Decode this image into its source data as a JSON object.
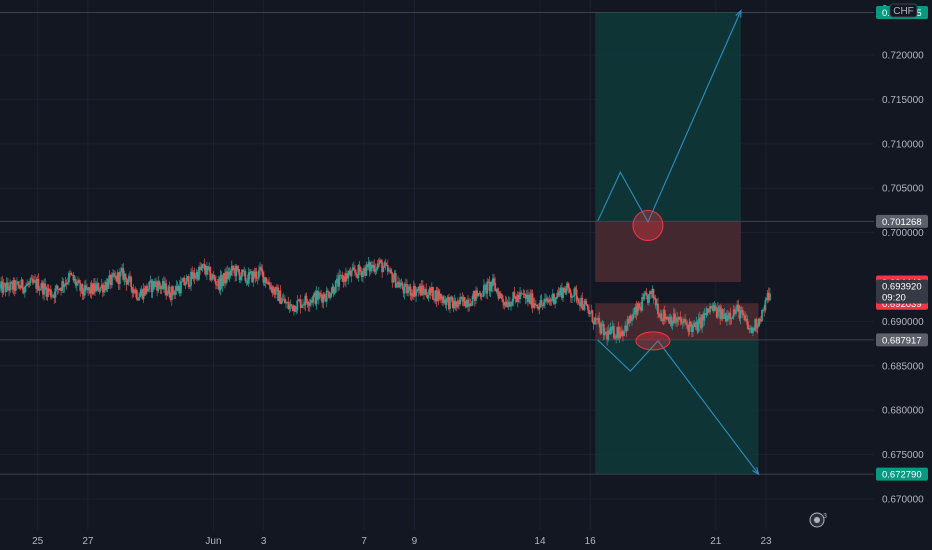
{
  "chart_data": {
    "type": "candlestick",
    "currency_label": "CHF",
    "y_axis": {
      "min": 0.6665,
      "max": 0.7262,
      "ticks": [
        "0.720000",
        "0.715000",
        "0.710000",
        "0.705000",
        "0.700000",
        "0.690000",
        "0.685000",
        "0.680000",
        "0.675000",
        "0.670000"
      ],
      "tick_values": [
        0.72,
        0.715,
        0.71,
        0.705,
        0.7,
        0.69,
        0.685,
        0.68,
        0.675,
        0.67
      ],
      "top_partial_label": "0."
    },
    "x_axis": {
      "labels": [
        "25",
        "27",
        "Jun",
        "3",
        "7",
        "9",
        "14",
        "16",
        "21",
        "23"
      ],
      "label_positions": [
        0.0,
        2.0,
        7.0,
        9.0,
        13.0,
        15.0,
        20.0,
        22.0,
        27.0,
        29.0
      ],
      "range": [
        -1.5,
        33.3
      ]
    },
    "price_tags": [
      {
        "label": "0.724795",
        "value": 0.724795,
        "color": "#089981"
      },
      {
        "label": "0.701268",
        "value": 0.701268,
        "color": "#5d606b"
      },
      {
        "label": "0.694442",
        "value": 0.694442,
        "color": "#f23645"
      },
      {
        "label": "0.692039",
        "value": 0.692039,
        "color": "#f23645"
      },
      {
        "label": "0.687917",
        "value": 0.687917,
        "color": "#5d606b"
      },
      {
        "label": "0.672790",
        "value": 0.67279,
        "color": "#089981"
      }
    ],
    "current_price_tag": {
      "price": "0.693920",
      "countdown": "09:20",
      "value": 0.69392,
      "color": "#363a45"
    },
    "horizontal_levels": [
      0.724795,
      0.701268,
      0.687917,
      0.67279
    ],
    "long_position": {
      "x_start": 22.2,
      "x_end": 28.0,
      "entry": 0.701268,
      "target": 0.724795,
      "stop": 0.694442
    },
    "short_position": {
      "x_start": 22.2,
      "x_end": 28.7,
      "entry": 0.687917,
      "target": 0.67279,
      "stop": 0.692039
    },
    "arrows": [
      {
        "points": [
          [
            22.3,
            0.7013
          ],
          [
            23.2,
            0.7068
          ],
          [
            24.3,
            0.7012
          ],
          [
            28.0,
            0.725
          ]
        ]
      },
      {
        "points": [
          [
            22.3,
            0.6879
          ],
          [
            23.6,
            0.6844
          ],
          [
            24.7,
            0.6878
          ],
          [
            28.7,
            0.6728
          ]
        ]
      }
    ],
    "annotations": [
      {
        "shape": "circle",
        "x": 24.3,
        "y": 0.7008
      },
      {
        "shape": "ellipse",
        "x": 24.5,
        "y": 0.6878
      }
    ],
    "price_anchors": [
      [
        -1.5,
        0.6937
      ],
      [
        0,
        0.6942
      ],
      [
        0.6,
        0.6931
      ],
      [
        1.3,
        0.6951
      ],
      [
        1.8,
        0.6932
      ],
      [
        2.6,
        0.694
      ],
      [
        3.4,
        0.6953
      ],
      [
        4.0,
        0.693
      ],
      [
        4.7,
        0.6943
      ],
      [
        5.3,
        0.6932
      ],
      [
        6.1,
        0.6948
      ],
      [
        6.6,
        0.696
      ],
      [
        7.2,
        0.6942
      ],
      [
        7.8,
        0.6958
      ],
      [
        8.3,
        0.6948
      ],
      [
        8.9,
        0.6955
      ],
      [
        9.4,
        0.6935
      ],
      [
        10.0,
        0.6916
      ],
      [
        10.8,
        0.6925
      ],
      [
        11.5,
        0.693
      ],
      [
        12.2,
        0.695
      ],
      [
        13.0,
        0.6958
      ],
      [
        13.6,
        0.6965
      ],
      [
        14.2,
        0.6948
      ],
      [
        14.6,
        0.6935
      ],
      [
        15.2,
        0.6935
      ],
      [
        15.9,
        0.693
      ],
      [
        16.6,
        0.6918
      ],
      [
        17.3,
        0.6926
      ],
      [
        18.1,
        0.6942
      ],
      [
        18.6,
        0.6922
      ],
      [
        19.3,
        0.6928
      ],
      [
        20.1,
        0.6918
      ],
      [
        21.0,
        0.6937
      ],
      [
        21.5,
        0.6928
      ],
      [
        22.0,
        0.6908
      ],
      [
        22.6,
        0.6885
      ],
      [
        23.3,
        0.689
      ],
      [
        24.2,
        0.6925
      ],
      [
        24.5,
        0.693
      ],
      [
        24.8,
        0.6908
      ],
      [
        25.5,
        0.69
      ],
      [
        26.2,
        0.6892
      ],
      [
        26.8,
        0.6915
      ],
      [
        27.3,
        0.6906
      ],
      [
        27.9,
        0.6913
      ],
      [
        28.4,
        0.6888
      ],
      [
        28.9,
        0.6912
      ],
      [
        29.2,
        0.6938
      ]
    ],
    "colors": {
      "up": "#26a69a",
      "down": "#ef5350",
      "reward_zone": "#0f3a3a",
      "risk_zone": "#4a2a31",
      "line": "#2a8fc0",
      "level_line": "#3d4150"
    },
    "widgets": {
      "badge_count": "3"
    }
  }
}
